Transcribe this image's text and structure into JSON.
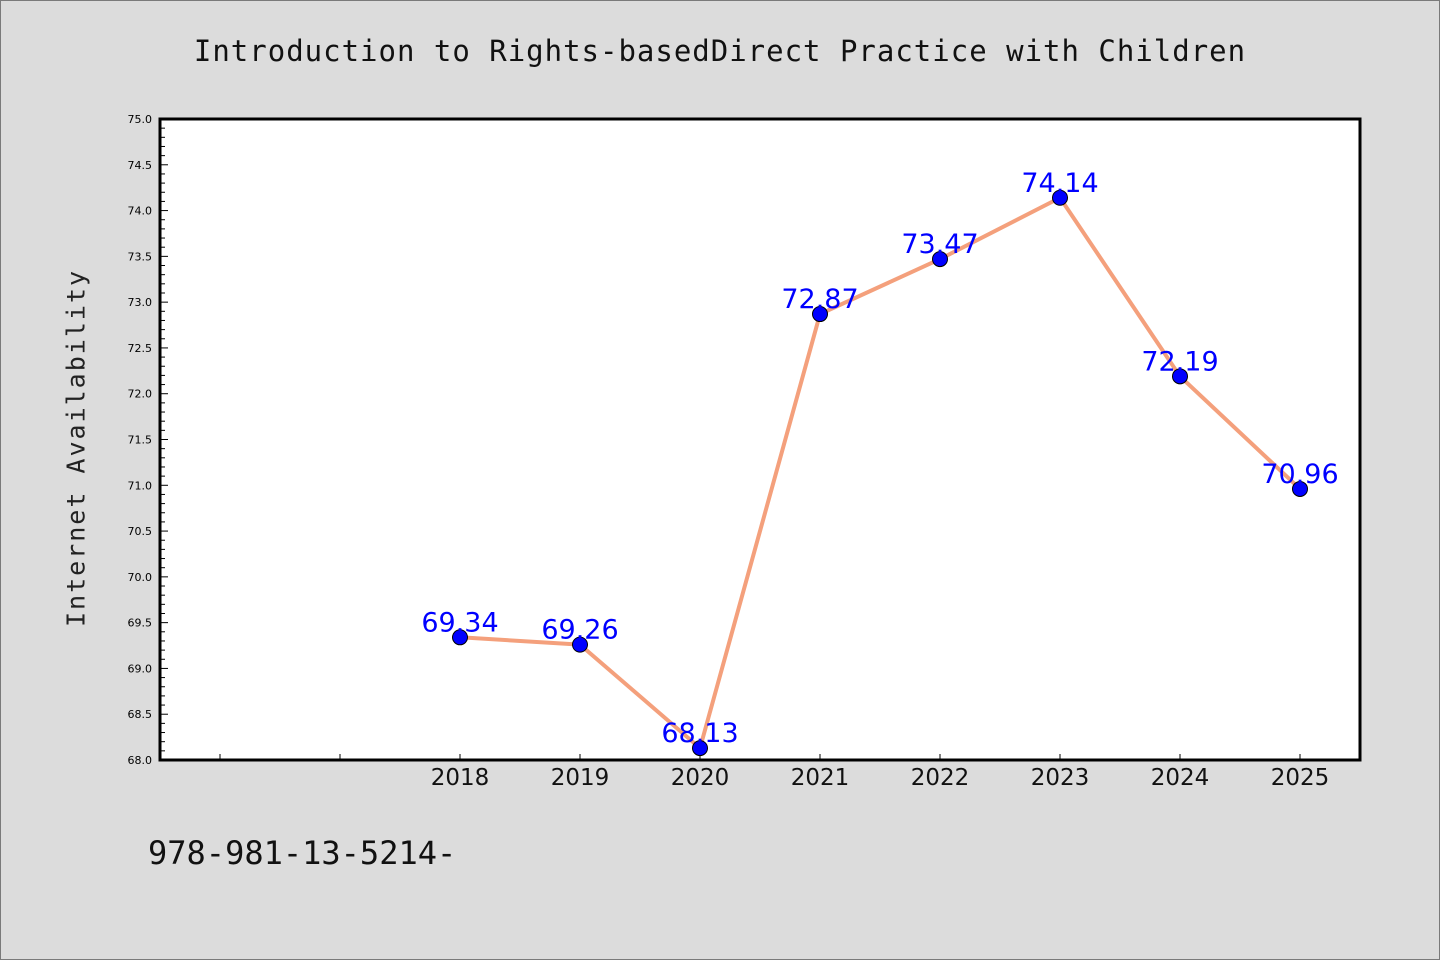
{
  "chart_data": {
    "type": "line",
    "title": "Introduction to Rights-basedDirect Practice with Children",
    "xlabel": "",
    "ylabel": "Internet Availability",
    "x": [
      "2018",
      "2019",
      "2020",
      "2021",
      "2022",
      "2023",
      "2024",
      "2025"
    ],
    "series": [
      {
        "values": [
          69.34,
          69.26,
          68.13,
          72.87,
          73.47,
          74.14,
          72.19,
          70.96
        ],
        "data_labels": [
          "69.34",
          "69.26",
          "68.13",
          "72.87",
          "73.47",
          "74.14",
          "72.19",
          "70.96"
        ]
      }
    ],
    "ylim": [
      68.0,
      75.0
    ],
    "yticks": [
      "68.0",
      "68.5",
      "69.0",
      "69.5",
      "70.0",
      "70.5",
      "71.0",
      "71.5",
      "72.0",
      "72.5",
      "73.0",
      "73.5",
      "74.0",
      "74.5",
      "75.0"
    ],
    "grid": false,
    "colors": {
      "line": "#f4a07c",
      "marker": "#0000ff",
      "label": "#0000ff",
      "axes": "#000000"
    }
  },
  "footnote": "978-981-13-5214-"
}
